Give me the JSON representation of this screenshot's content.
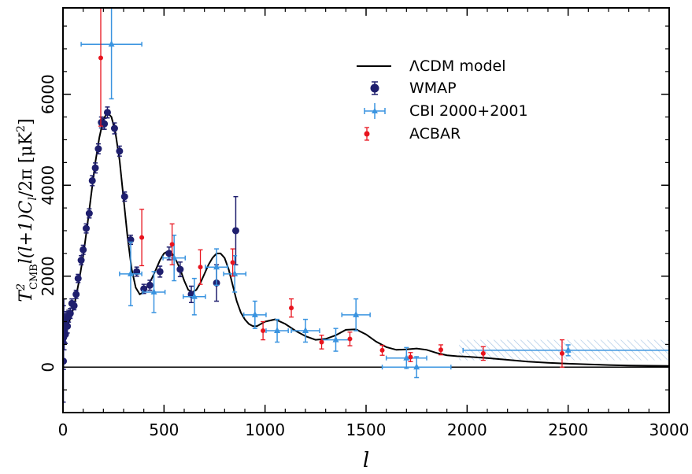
{
  "chart_data": {
    "type": "scatter",
    "title": "",
    "xlabel": "l",
    "ylabel_parts": {
      "base": "T",
      "sup": "2",
      "sub": "CMB",
      "mid": "l(l+1)C",
      "sub2": "l",
      "tail": "/2π  [μK",
      "sup2": "2",
      "end": "]"
    },
    "xlim": [
      0,
      3000
    ],
    "ylim": [
      -1000,
      7900
    ],
    "xticks": [
      "0",
      "500",
      "1000",
      "1500",
      "2000",
      "2500",
      "3000"
    ],
    "xtick_values": [
      0,
      500,
      1000,
      1500,
      2000,
      2500,
      3000
    ],
    "yticks": [
      "0",
      "2000",
      "4000",
      "6000"
    ],
    "ytick_values": [
      0,
      2000,
      4000,
      6000
    ],
    "grid": false,
    "legend_position": "top-right",
    "model": {
      "name": "ΛCDM model",
      "x": [
        2,
        20,
        40,
        60,
        80,
        100,
        120,
        140,
        160,
        180,
        200,
        220,
        240,
        260,
        280,
        300,
        320,
        340,
        360,
        380,
        400,
        420,
        440,
        460,
        480,
        500,
        520,
        540,
        560,
        580,
        600,
        620,
        640,
        660,
        680,
        700,
        720,
        740,
        760,
        780,
        800,
        820,
        840,
        860,
        880,
        900,
        920,
        940,
        960,
        980,
        1000,
        1050,
        1100,
        1150,
        1200,
        1250,
        1300,
        1350,
        1400,
        1450,
        1500,
        1550,
        1600,
        1650,
        1700,
        1750,
        1800,
        1850,
        1900,
        1950,
        2000,
        2100,
        2200,
        2300,
        2400,
        2500,
        2600,
        2700,
        2800,
        2900,
        3000
      ],
      "y": [
        1000,
        900,
        1100,
        1450,
        1900,
        2450,
        3100,
        3800,
        4500,
        5050,
        5450,
        5600,
        5500,
        5150,
        4550,
        3700,
        2850,
        2150,
        1750,
        1600,
        1650,
        1800,
        1950,
        2150,
        2350,
        2500,
        2550,
        2500,
        2350,
        2150,
        1900,
        1700,
        1650,
        1700,
        1850,
        2050,
        2250,
        2400,
        2500,
        2500,
        2400,
        2150,
        1800,
        1450,
        1200,
        1050,
        950,
        900,
        900,
        950,
        1000,
        1050,
        950,
        800,
        680,
        600,
        620,
        700,
        820,
        830,
        720,
        560,
        440,
        380,
        390,
        410,
        380,
        310,
        260,
        240,
        230,
        200,
        160,
        120,
        95,
        75,
        60,
        45,
        35,
        30,
        25
      ]
    },
    "series": [
      {
        "name": "WMAP",
        "color": "#1f1f6e",
        "marker": "circle",
        "points": [
          {
            "x": 2,
            "y": 130,
            "yerr": 900
          },
          {
            "x": 3,
            "y": 650,
            "yerr": 700
          },
          {
            "x": 4,
            "y": 1000,
            "yerr": 500
          },
          {
            "x": 6,
            "y": 780,
            "yerr": 400
          },
          {
            "x": 8,
            "y": 850,
            "yerr": 300
          },
          {
            "x": 12,
            "y": 720,
            "yerr": 200
          },
          {
            "x": 16,
            "y": 1050,
            "yerr": 170
          },
          {
            "x": 22,
            "y": 900,
            "yerr": 150
          },
          {
            "x": 28,
            "y": 1120,
            "yerr": 130
          },
          {
            "x": 36,
            "y": 1180,
            "yerr": 110
          },
          {
            "x": 44,
            "y": 1400,
            "yerr": 100
          },
          {
            "x": 55,
            "y": 1350,
            "yerr": 90
          },
          {
            "x": 65,
            "y": 1600,
            "yerr": 90
          },
          {
            "x": 75,
            "y": 1950,
            "yerr": 90
          },
          {
            "x": 90,
            "y": 2350,
            "yerr": 100
          },
          {
            "x": 100,
            "y": 2580,
            "yerr": 100
          },
          {
            "x": 115,
            "y": 3050,
            "yerr": 100
          },
          {
            "x": 130,
            "y": 3380,
            "yerr": 100
          },
          {
            "x": 145,
            "y": 4100,
            "yerr": 110
          },
          {
            "x": 160,
            "y": 4380,
            "yerr": 110
          },
          {
            "x": 175,
            "y": 4800,
            "yerr": 110
          },
          {
            "x": 190,
            "y": 5380,
            "yerr": 120
          },
          {
            "x": 205,
            "y": 5350,
            "yerr": 120
          },
          {
            "x": 220,
            "y": 5600,
            "yerr": 120
          },
          {
            "x": 255,
            "y": 5250,
            "yerr": 120
          },
          {
            "x": 280,
            "y": 4750,
            "yerr": 110
          },
          {
            "x": 305,
            "y": 3750,
            "yerr": 100
          },
          {
            "x": 335,
            "y": 2800,
            "yerr": 100
          },
          {
            "x": 365,
            "y": 2100,
            "yerr": 100
          },
          {
            "x": 400,
            "y": 1720,
            "yerr": 100
          },
          {
            "x": 430,
            "y": 1800,
            "yerr": 110
          },
          {
            "x": 480,
            "y": 2100,
            "yerr": 120
          },
          {
            "x": 525,
            "y": 2500,
            "yerr": 140
          },
          {
            "x": 580,
            "y": 2150,
            "yerr": 160
          },
          {
            "x": 635,
            "y": 1600,
            "yerr": 180
          },
          {
            "x": 760,
            "y": 1850,
            "yerr": 400
          },
          {
            "x": 855,
            "y": 3000,
            "yerr": 750
          }
        ]
      },
      {
        "name": "CBI 2000+2001",
        "color": "#3a94e0",
        "marker": "triangle",
        "points": [
          {
            "x": 240,
            "y": 7100,
            "xerr": 150,
            "yerr": 1200
          },
          {
            "x": 335,
            "y": 2050,
            "xerr": 55,
            "yerr": 700
          },
          {
            "x": 450,
            "y": 1650,
            "xerr": 55,
            "yerr": 450
          },
          {
            "x": 550,
            "y": 2400,
            "xerr": 55,
            "yerr": 500
          },
          {
            "x": 650,
            "y": 1550,
            "xerr": 55,
            "yerr": 400
          },
          {
            "x": 760,
            "y": 2200,
            "xerr": 55,
            "yerr": 400
          },
          {
            "x": 850,
            "y": 2050,
            "xerr": 55,
            "yerr": 400
          },
          {
            "x": 950,
            "y": 1150,
            "xerr": 55,
            "yerr": 300
          },
          {
            "x": 1060,
            "y": 800,
            "xerr": 55,
            "yerr": 250
          },
          {
            "x": 1200,
            "y": 800,
            "xerr": 70,
            "yerr": 250
          },
          {
            "x": 1350,
            "y": 600,
            "xerr": 70,
            "yerr": 250
          },
          {
            "x": 1450,
            "y": 1150,
            "xerr": 70,
            "yerr": 350
          },
          {
            "x": 1700,
            "y": 200,
            "xerr": 100,
            "yerr": 230
          },
          {
            "x": 1750,
            "y": 0,
            "xerr": 170,
            "yerr": 230
          },
          {
            "x": 2500,
            "y": 370,
            "xerr": 520,
            "yerr": 120
          }
        ]
      },
      {
        "name": "ACBAR",
        "color": "#e8141e",
        "marker": "circle",
        "points": [
          {
            "x": 187,
            "y": 6800,
            "yerr": 1500
          },
          {
            "x": 390,
            "y": 2850,
            "yerr": 620
          },
          {
            "x": 540,
            "y": 2700,
            "yerr": 450
          },
          {
            "x": 680,
            "y": 2200,
            "yerr": 380
          },
          {
            "x": 840,
            "y": 2300,
            "yerr": 300
          },
          {
            "x": 990,
            "y": 800,
            "yerr": 200
          },
          {
            "x": 1130,
            "y": 1300,
            "yerr": 200
          },
          {
            "x": 1280,
            "y": 550,
            "yerr": 150
          },
          {
            "x": 1420,
            "y": 620,
            "yerr": 150
          },
          {
            "x": 1580,
            "y": 370,
            "yerr": 110
          },
          {
            "x": 1720,
            "y": 220,
            "yerr": 100
          },
          {
            "x": 1870,
            "y": 380,
            "yerr": 110
          },
          {
            "x": 2080,
            "y": 300,
            "yerr": 150
          },
          {
            "x": 2470,
            "y": 300,
            "yerr": 300
          }
        ]
      }
    ],
    "hatched_band": {
      "xmin": 1960,
      "xmax": 3000,
      "ymin": 150,
      "ymax": 600,
      "color": "#3a94e0"
    }
  }
}
